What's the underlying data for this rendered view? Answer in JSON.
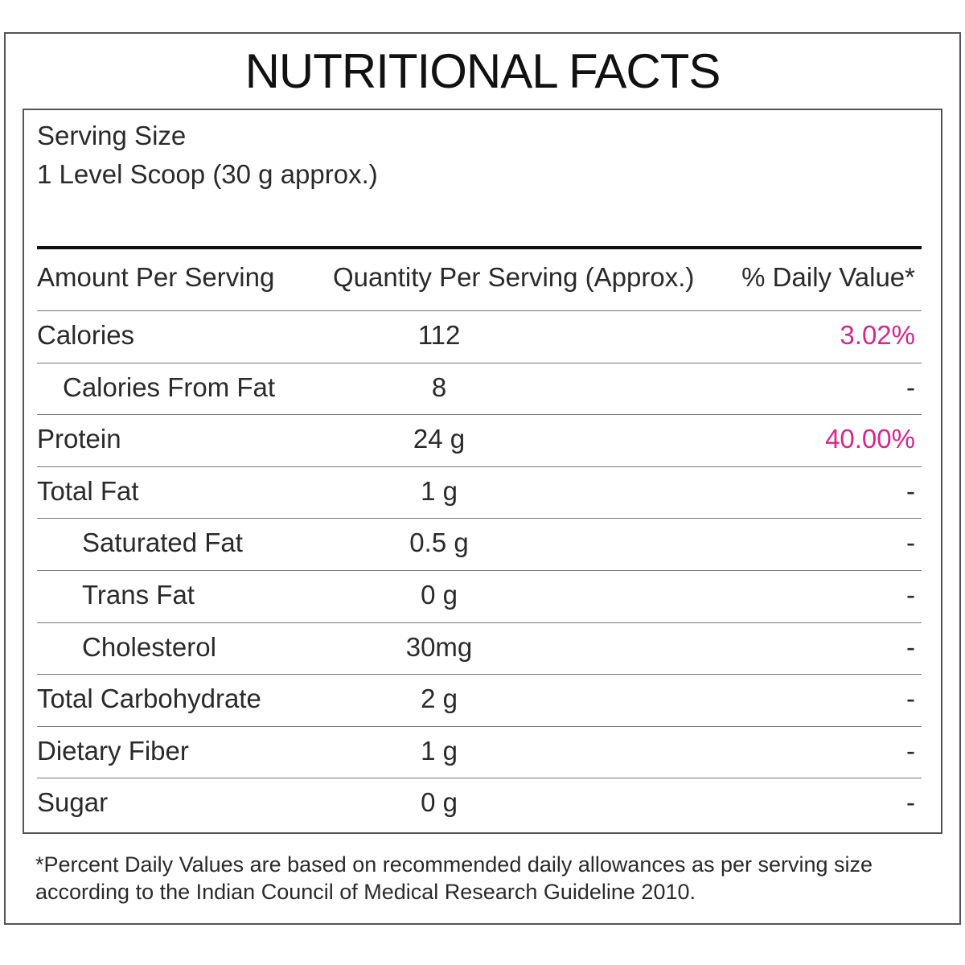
{
  "title": "NUTRITIONAL FACTS",
  "serving": {
    "label": "Serving Size",
    "value": "1 Level Scoop (30 g approx.)"
  },
  "table": {
    "headers": {
      "amount": "Amount Per Serving",
      "quantity": "Quantity Per Serving (Approx.)",
      "daily_value": "% Daily Value*"
    },
    "rows": [
      {
        "name": "Calories",
        "quantity": "112",
        "daily_value": "3.02%",
        "level": 0,
        "highlight": true
      },
      {
        "name": "Calories From Fat",
        "quantity": "8",
        "daily_value": "-",
        "level": 1,
        "highlight": false
      },
      {
        "name": "Protein",
        "quantity": "24 g",
        "daily_value": "40.00%",
        "level": 0,
        "highlight": true
      },
      {
        "name": "Total Fat",
        "quantity": "1 g",
        "daily_value": "-",
        "level": 0,
        "highlight": false
      },
      {
        "name": "Saturated Fat",
        "quantity": "0.5 g",
        "daily_value": "-",
        "level": 2,
        "highlight": false
      },
      {
        "name": "Trans Fat",
        "quantity": "0 g",
        "daily_value": "-",
        "level": 2,
        "highlight": false
      },
      {
        "name": "Cholesterol",
        "quantity": "30mg",
        "daily_value": "-",
        "level": 2,
        "highlight": false
      },
      {
        "name": "Total Carbohydrate",
        "quantity": "2 g",
        "daily_value": "-",
        "level": 0,
        "highlight": false
      },
      {
        "name": "Dietary Fiber",
        "quantity": "1 g",
        "daily_value": "-",
        "level": 0,
        "highlight": false
      },
      {
        "name": "Sugar",
        "quantity": "0 g",
        "daily_value": "-",
        "level": 0,
        "highlight": false
      }
    ]
  },
  "footnote": "*Percent Daily Values are based on recommended daily allowances as per serving size according to the Indian Council of Medical Research Guideline 2010.",
  "colors": {
    "accent": "#d6278c",
    "text": "#222222",
    "border": "#555555"
  }
}
